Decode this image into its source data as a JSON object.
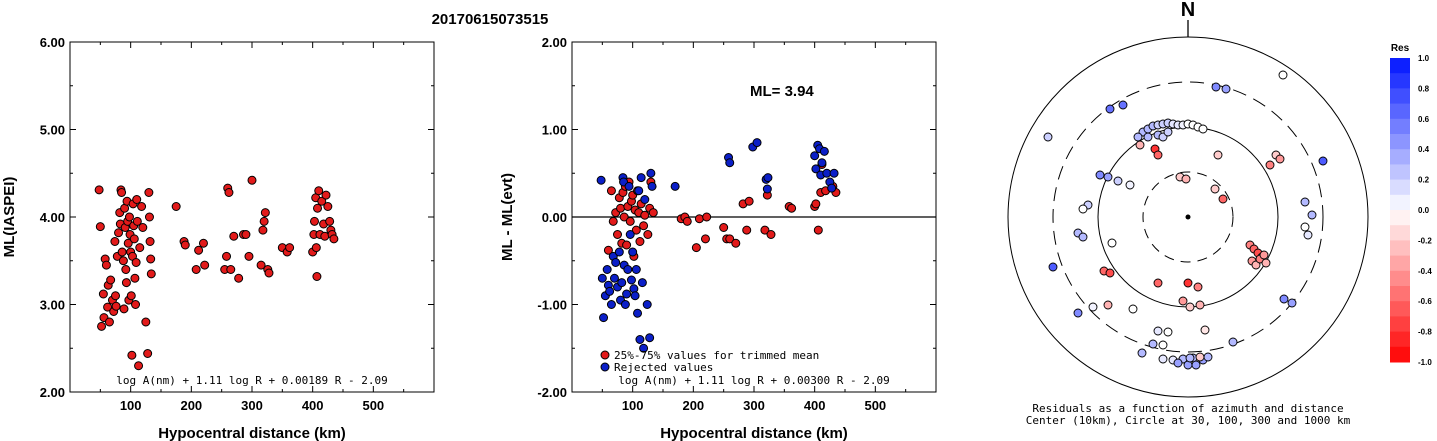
{
  "title": "20170615073515",
  "colors": {
    "red": "#e21a1a",
    "blue": "#0b1fc8"
  },
  "chart_data": [
    {
      "type": "scatter",
      "xlabel": "Hypocentral distance (km)",
      "ylabel": "ML(IASPEI)",
      "xlim": [
        0,
        600
      ],
      "ylim": [
        2.0,
        6.0
      ],
      "xticks": [
        "100",
        "200",
        "300",
        "400",
        "500"
      ],
      "yticks": [
        "2.00",
        "3.00",
        "4.00",
        "5.00",
        "6.00"
      ],
      "formula": "log A(nm) + 1.11 log R + 0.00189 R - 2.09",
      "points": [
        [
          48,
          4.31
        ],
        [
          50,
          3.89
        ],
        [
          52,
          2.75
        ],
        [
          55,
          3.12
        ],
        [
          56,
          2.85
        ],
        [
          58,
          3.52
        ],
        [
          60,
          3.45
        ],
        [
          62,
          2.97
        ],
        [
          63,
          3.22
        ],
        [
          65,
          2.8
        ],
        [
          67,
          3.28
        ],
        [
          70,
          3.05
        ],
        [
          72,
          2.92
        ],
        [
          74,
          3.72
        ],
        [
          75,
          3.1
        ],
        [
          76,
          2.98
        ],
        [
          78,
          3.55
        ],
        [
          80,
          3.82
        ],
        [
          82,
          4.05
        ],
        [
          83,
          3.92
        ],
        [
          84,
          4.31
        ],
        [
          85,
          4.28
        ],
        [
          86,
          3.6
        ],
        [
          88,
          3.5
        ],
        [
          89,
          2.95
        ],
        [
          90,
          4.1
        ],
        [
          91,
          3.88
        ],
        [
          92,
          3.4
        ],
        [
          93,
          3.25
        ],
        [
          94,
          4.18
        ],
        [
          95,
          3.95
        ],
        [
          96,
          3.7
        ],
        [
          97,
          3.05
        ],
        [
          98,
          4.0
        ],
        [
          99,
          3.8
        ],
        [
          100,
          3.6
        ],
        [
          101,
          3.1
        ],
        [
          102,
          2.42
        ],
        [
          103,
          3.55
        ],
        [
          104,
          4.15
        ],
        [
          105,
          3.9
        ],
        [
          106,
          3.75
        ],
        [
          107,
          3.3
        ],
        [
          108,
          3.0
        ],
        [
          109,
          3.48
        ],
        [
          110,
          4.2
        ],
        [
          111,
          3.95
        ],
        [
          113,
          2.3
        ],
        [
          115,
          3.65
        ],
        [
          118,
          4.12
        ],
        [
          120,
          3.88
        ],
        [
          125,
          2.8
        ],
        [
          128,
          2.44
        ],
        [
          130,
          4.28
        ],
        [
          131,
          4.0
        ],
        [
          132,
          3.72
        ],
        [
          133,
          3.52
        ],
        [
          134,
          3.35
        ],
        [
          175,
          4.12
        ],
        [
          188,
          3.72
        ],
        [
          190,
          3.68
        ],
        [
          208,
          3.4
        ],
        [
          212,
          3.62
        ],
        [
          220,
          3.7
        ],
        [
          222,
          3.45
        ],
        [
          255,
          3.4
        ],
        [
          258,
          3.55
        ],
        [
          260,
          4.33
        ],
        [
          262,
          4.28
        ],
        [
          265,
          3.4
        ],
        [
          270,
          3.78
        ],
        [
          278,
          3.3
        ],
        [
          286,
          3.8
        ],
        [
          290,
          3.8
        ],
        [
          295,
          3.55
        ],
        [
          300,
          4.42
        ],
        [
          315,
          3.45
        ],
        [
          318,
          3.85
        ],
        [
          320,
          3.95
        ],
        [
          322,
          4.05
        ],
        [
          326,
          3.4
        ],
        [
          328,
          3.36
        ],
        [
          350,
          3.65
        ],
        [
          358,
          3.6
        ],
        [
          362,
          3.65
        ],
        [
          400,
          3.6
        ],
        [
          402,
          3.8
        ],
        [
          403,
          3.95
        ],
        [
          405,
          4.22
        ],
        [
          406,
          3.65
        ],
        [
          407,
          3.32
        ],
        [
          408,
          4.1
        ],
        [
          410,
          4.3
        ],
        [
          412,
          3.8
        ],
        [
          415,
          4.18
        ],
        [
          418,
          3.92
        ],
        [
          420,
          3.78
        ],
        [
          422,
          4.25
        ],
        [
          425,
          4.12
        ],
        [
          428,
          3.95
        ],
        [
          430,
          3.85
        ],
        [
          432,
          3.8
        ],
        [
          435,
          3.75
        ]
      ]
    },
    {
      "type": "scatter",
      "xlabel": "Hypocentral distance (km)",
      "ylabel": "ML - ML(evt)",
      "xlim": [
        0,
        600
      ],
      "ylim": [
        -2.0,
        2.0
      ],
      "xticks": [
        "100",
        "200",
        "300",
        "400",
        "500"
      ],
      "yticks": [
        "-2.00",
        "-1.00",
        "0.00",
        "1.00",
        "2.00"
      ],
      "annotation": "ML= 3.94",
      "formula": "log A(nm) + 1.11 log R + 0.00300 R - 2.09",
      "legend": [
        "25%-75% values for trimmed mean",
        "Rejected values"
      ],
      "trimmed": [
        [
          60,
          -0.38
        ],
        [
          65,
          0.3
        ],
        [
          68,
          -0.05
        ],
        [
          72,
          0.05
        ],
        [
          75,
          -0.2
        ],
        [
          78,
          0.22
        ],
        [
          80,
          0.1
        ],
        [
          82,
          -0.3
        ],
        [
          84,
          0.28
        ],
        [
          86,
          0.0
        ],
        [
          88,
          0.35
        ],
        [
          90,
          -0.32
        ],
        [
          92,
          0.12
        ],
        [
          94,
          0.4
        ],
        [
          96,
          -0.05
        ],
        [
          98,
          0.18
        ],
        [
          100,
          0.25
        ],
        [
          102,
          -0.45
        ],
        [
          104,
          0.08
        ],
        [
          106,
          -0.15
        ],
        [
          108,
          0.3
        ],
        [
          110,
          0.05
        ],
        [
          112,
          -0.28
        ],
        [
          114,
          0.15
        ],
        [
          118,
          -0.1
        ],
        [
          120,
          0.02
        ],
        [
          125,
          -0.2
        ],
        [
          128,
          0.1
        ],
        [
          130,
          0.4
        ],
        [
          134,
          0.05
        ],
        [
          180,
          -0.02
        ],
        [
          186,
          0.0
        ],
        [
          190,
          -0.05
        ],
        [
          205,
          -0.35
        ],
        [
          210,
          -0.02
        ],
        [
          220,
          -0.25
        ],
        [
          222,
          0.0
        ],
        [
          250,
          -0.12
        ],
        [
          255,
          -0.25
        ],
        [
          260,
          -0.25
        ],
        [
          270,
          -0.3
        ],
        [
          282,
          0.15
        ],
        [
          288,
          -0.15
        ],
        [
          292,
          0.18
        ],
        [
          318,
          -0.15
        ],
        [
          322,
          0.25
        ],
        [
          328,
          -0.2
        ],
        [
          358,
          0.12
        ],
        [
          362,
          0.1
        ],
        [
          400,
          0.12
        ],
        [
          402,
          0.15
        ],
        [
          406,
          -0.15
        ],
        [
          410,
          0.28
        ],
        [
          412,
          0.6
        ],
        [
          418,
          0.3
        ],
        [
          430,
          0.35
        ],
        [
          435,
          0.28
        ]
      ],
      "rejected": [
        [
          48,
          0.42
        ],
        [
          50,
          -0.7
        ],
        [
          52,
          -1.15
        ],
        [
          55,
          -0.9
        ],
        [
          58,
          -0.6
        ],
        [
          60,
          -0.78
        ],
        [
          62,
          -0.85
        ],
        [
          65,
          -1.0
        ],
        [
          68,
          -0.45
        ],
        [
          70,
          -0.7
        ],
        [
          72,
          -0.52
        ],
        [
          75,
          -0.8
        ],
        [
          78,
          -0.4
        ],
        [
          80,
          -0.95
        ],
        [
          82,
          -0.75
        ],
        [
          84,
          0.45
        ],
        [
          85,
          0.4
        ],
        [
          86,
          -0.55
        ],
        [
          88,
          -1.0
        ],
        [
          90,
          -0.88
        ],
        [
          92,
          -0.6
        ],
        [
          94,
          0.35
        ],
        [
          96,
          -0.2
        ],
        [
          98,
          -0.72
        ],
        [
          100,
          -0.4
        ],
        [
          102,
          -0.82
        ],
        [
          104,
          -0.9
        ],
        [
          106,
          -0.6
        ],
        [
          108,
          -1.1
        ],
        [
          110,
          0.3
        ],
        [
          112,
          -1.4
        ],
        [
          114,
          0.45
        ],
        [
          116,
          -0.75
        ],
        [
          118,
          -1.5
        ],
        [
          120,
          0.2
        ],
        [
          124,
          -1.0
        ],
        [
          128,
          -1.38
        ],
        [
          130,
          0.5
        ],
        [
          132,
          0.35
        ],
        [
          170,
          0.35
        ],
        [
          258,
          0.68
        ],
        [
          260,
          0.62
        ],
        [
          298,
          0.8
        ],
        [
          305,
          0.85
        ],
        [
          320,
          0.43
        ],
        [
          322,
          0.32
        ],
        [
          323,
          0.45
        ],
        [
          400,
          0.7
        ],
        [
          402,
          0.55
        ],
        [
          405,
          0.82
        ],
        [
          408,
          0.78
        ],
        [
          410,
          0.48
        ],
        [
          412,
          0.62
        ],
        [
          416,
          0.75
        ],
        [
          420,
          0.5
        ],
        [
          425,
          0.4
        ],
        [
          428,
          0.33
        ],
        [
          432,
          0.5
        ]
      ]
    },
    {
      "type": "scatter",
      "title": "N",
      "caption": [
        "Residuals as a function of azimuth and distance",
        "Center (10km), Circle at 30, 100, 300 and 1000 km"
      ],
      "colorbar_label": "Res",
      "colorbar_ticks": [
        "1.0",
        "0.8",
        "0.6",
        "0.4",
        "0.2",
        "0.0",
        "-0.2",
        "-0.4",
        "-0.6",
        "-0.8",
        "-1.0"
      ],
      "points": [
        [
          -78,
          -108,
          0.6
        ],
        [
          -65,
          -112,
          0.6
        ],
        [
          28,
          -130,
          0.5
        ],
        [
          38,
          -128,
          0.4
        ],
        [
          -45,
          -85,
          0.3
        ],
        [
          -40,
          -88,
          0.3
        ],
        [
          -35,
          -91,
          0.3
        ],
        [
          -30,
          -92,
          0.2
        ],
        [
          -25,
          -93,
          0.2
        ],
        [
          -20,
          -94,
          0.2
        ],
        [
          -15,
          -93,
          0.1
        ],
        [
          -10,
          -92,
          0.1
        ],
        [
          -5,
          -92,
          0.05
        ],
        [
          0,
          -93,
          0.0
        ],
        [
          5,
          -92,
          0.0
        ],
        [
          10,
          -90,
          0.0
        ],
        [
          15,
          -88,
          0.0
        ],
        [
          -50,
          -80,
          0.3
        ],
        [
          -40,
          -80,
          0.3
        ],
        [
          -30,
          -82,
          0.3
        ],
        [
          -25,
          -80,
          0.2
        ],
        [
          -20,
          -85,
          0.2
        ],
        [
          -48,
          -72,
          -0.3
        ],
        [
          -33,
          -68,
          -0.8
        ],
        [
          -30,
          -62,
          -0.6
        ],
        [
          30,
          -62,
          -0.2
        ],
        [
          88,
          -62,
          -0.2
        ],
        [
          92,
          -58,
          -0.4
        ],
        [
          82,
          -52,
          -0.5
        ],
        [
          135,
          -56,
          0.7
        ],
        [
          -88,
          -42,
          0.5
        ],
        [
          -80,
          -40,
          0.4
        ],
        [
          -70,
          -36,
          0.2
        ],
        [
          -58,
          -32,
          0.05
        ],
        [
          -8,
          -40,
          -0.2
        ],
        [
          -2,
          -38,
          -0.3
        ],
        [
          27,
          -28,
          -0.2
        ],
        [
          35,
          -18,
          -0.6
        ],
        [
          -100,
          -12,
          0.2
        ],
        [
          -105,
          -8,
          0.0
        ],
        [
          -110,
          16,
          0.3
        ],
        [
          -105,
          20,
          0.3
        ],
        [
          -76,
          26,
          0.0
        ],
        [
          117,
          -15,
          0.3
        ],
        [
          124,
          -2,
          0.3
        ],
        [
          117,
          10,
          0.0
        ],
        [
          120,
          18,
          0.1
        ],
        [
          62,
          28,
          -0.5
        ],
        [
          66,
          32,
          -0.6
        ],
        [
          70,
          36,
          -0.7
        ],
        [
          74,
          40,
          -0.6
        ],
        [
          64,
          44,
          -0.4
        ],
        [
          68,
          48,
          -0.3
        ],
        [
          72,
          42,
          -0.5
        ],
        [
          76,
          38,
          -0.4
        ],
        [
          78,
          46,
          -0.3
        ],
        [
          -135,
          50,
          0.7
        ],
        [
          -84,
          54,
          -0.6
        ],
        [
          -78,
          56,
          -0.7
        ],
        [
          -30,
          66,
          -0.6
        ],
        [
          0,
          66,
          -0.8
        ],
        [
          10,
          70,
          -0.5
        ],
        [
          -5,
          84,
          -0.4
        ],
        [
          2,
          90,
          -0.2
        ],
        [
          12,
          88,
          -0.3
        ],
        [
          -80,
          88,
          -0.3
        ],
        [
          -55,
          92,
          0.0
        ],
        [
          -95,
          90,
          0.05
        ],
        [
          -110,
          96,
          0.5
        ],
        [
          96,
          82,
          0.5
        ],
        [
          104,
          86,
          0.4
        ],
        [
          -30,
          114,
          0.1
        ],
        [
          -20,
          115,
          0.0
        ],
        [
          17,
          113,
          -0.1
        ],
        [
          -35,
          127,
          0.3
        ],
        [
          -25,
          128,
          0.0
        ],
        [
          45,
          125,
          0.3
        ],
        [
          -46,
          136,
          0.3
        ],
        [
          -25,
          142,
          0.1
        ],
        [
          -15,
          143,
          0.1
        ],
        [
          -5,
          142,
          0.3
        ],
        [
          5,
          141,
          0.3
        ],
        [
          -10,
          146,
          0.4
        ],
        [
          0,
          148,
          0.4
        ],
        [
          8,
          148,
          0.4
        ],
        [
          15,
          143,
          0.4
        ],
        [
          20,
          140,
          0.3
        ],
        [
          12,
          140,
          -0.2
        ],
        [
          2,
          141,
          0.3
        ],
        [
          -140,
          -80,
          0.2
        ],
        [
          95,
          -142,
          0.0
        ]
      ]
    }
  ]
}
